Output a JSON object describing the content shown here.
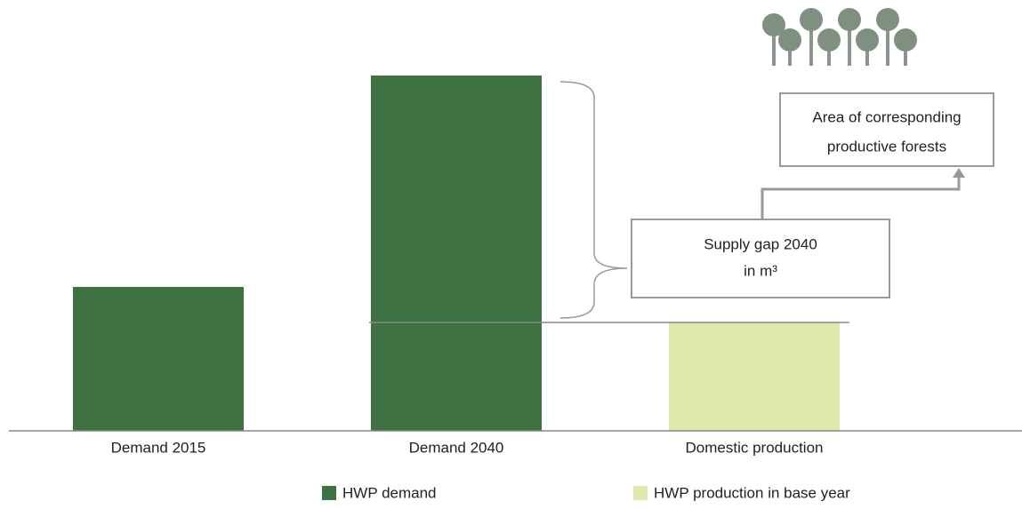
{
  "chart_data": {
    "type": "bar",
    "categories": [
      "Demand 2015",
      "Demand 2040",
      "Domestic production"
    ],
    "series": [
      {
        "name": "HWP demand",
        "color": "#3e7243",
        "values": [
          162,
          400,
          null
        ]
      },
      {
        "name": "HWP production in base year",
        "color": "#dfeaae",
        "values": [
          null,
          null,
          122
        ]
      }
    ],
    "ylim": [
      0,
      400
    ],
    "annotations": [
      {
        "lines": [
          "Supply gap 2040",
          "in m³"
        ]
      },
      {
        "lines": [
          "Area of corresponding",
          "productive forests"
        ]
      }
    ]
  }
}
